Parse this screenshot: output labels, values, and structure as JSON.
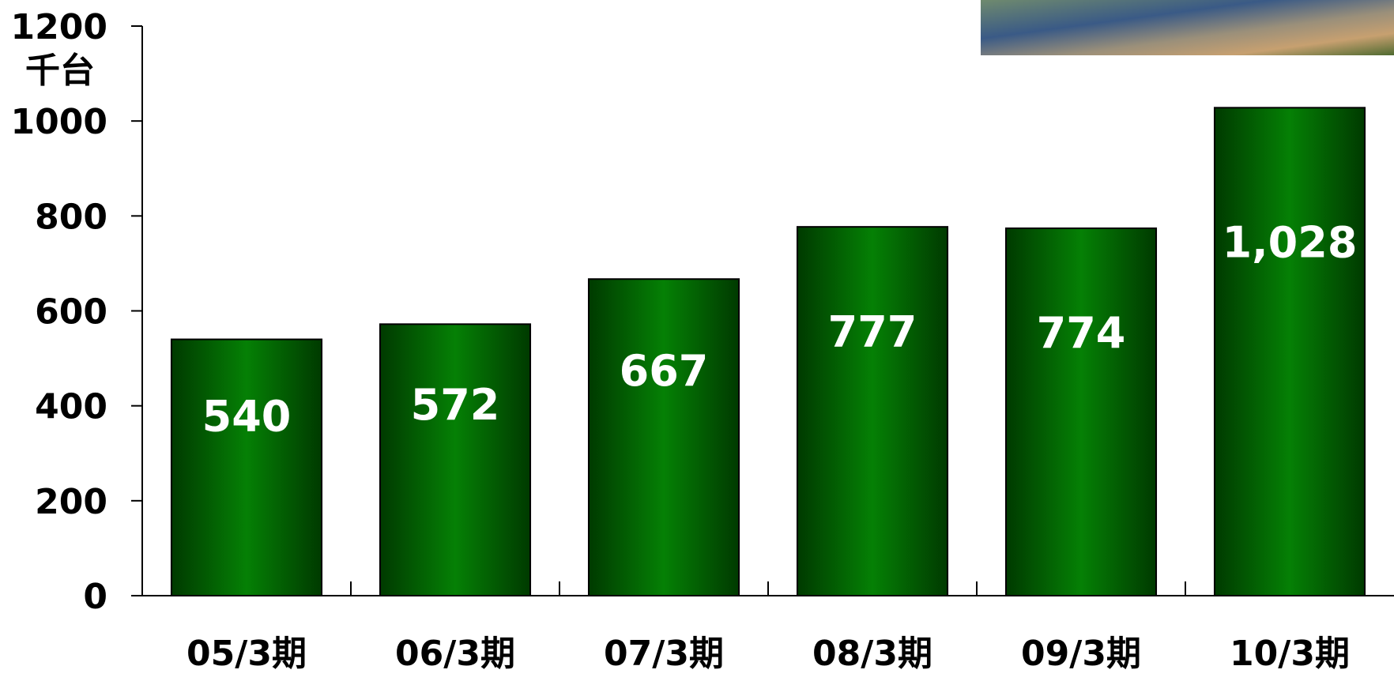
{
  "chart_data": {
    "type": "bar",
    "unit_label": "千台",
    "categories": [
      "05/3期",
      "06/3期",
      "07/3期",
      "08/3期",
      "09/3期",
      "10/3期"
    ],
    "values": [
      540,
      572,
      667,
      777,
      774,
      1028
    ],
    "value_labels": [
      "540",
      "572",
      "667",
      "777",
      "774",
      "1,028"
    ],
    "color": "#058005",
    "ylim": [
      0,
      1200
    ],
    "yticks": [
      0,
      200,
      400,
      600,
      800,
      1000,
      1200
    ],
    "grid": false
  }
}
